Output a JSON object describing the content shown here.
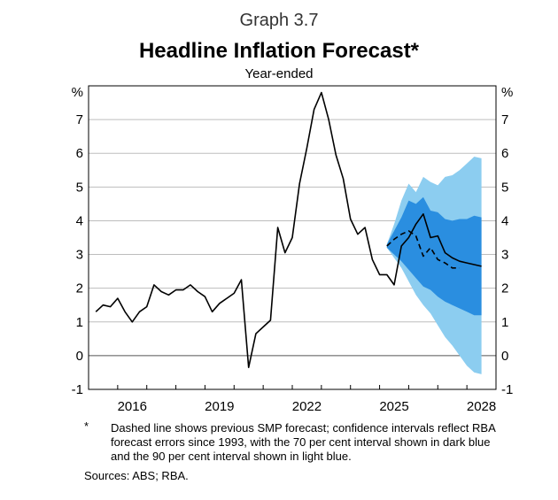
{
  "graph_label": "Graph 3.7",
  "footnote_mark": "*",
  "footnote": "Dashed line shows previous SMP forecast; confidence intervals reflect RBA forecast errors since 1993, with the 70 per cent interval shown in dark blue and the 90 per cent interval shown in light blue.",
  "sources": "Sources: ABS; RBA.",
  "colors": {
    "ci90": "#8ccdf0",
    "ci70": "#2a8ee0",
    "line": "#000000",
    "grid": "#bdbdbd"
  },
  "chart_data": {
    "type": "line",
    "title": "Headline Inflation Forecast*",
    "subtitle": "Year-ended",
    "ylabel_left": "%",
    "ylabel_right": "%",
    "ylim": [
      -1,
      8
    ],
    "yticks": [
      -1,
      0,
      1,
      2,
      3,
      4,
      5,
      6,
      7
    ],
    "xlim": [
      2015.0,
      2029.0
    ],
    "xticks": [
      2016,
      2019,
      2022,
      2025,
      2028
    ],
    "grid": true,
    "series": [
      {
        "style": "solid",
        "x": [
          2015.25,
          2015.5,
          2015.75,
          2016.0,
          2016.25,
          2016.5,
          2016.75,
          2017.0,
          2017.25,
          2017.5,
          2017.75,
          2018.0,
          2018.25,
          2018.5,
          2018.75,
          2019.0,
          2019.25,
          2019.5,
          2019.75,
          2020.0,
          2020.25,
          2020.5,
          2020.75,
          2021.0,
          2021.25,
          2021.5,
          2021.75,
          2022.0,
          2022.25,
          2022.5,
          2022.75,
          2023.0,
          2023.25,
          2023.5,
          2023.75,
          2024.0,
          2024.25,
          2024.5,
          2024.75,
          2025.0,
          2025.25,
          2025.5,
          2025.75,
          2026.0,
          2026.25,
          2026.5,
          2026.75,
          2027.0,
          2027.25,
          2027.5,
          2027.75,
          2028.0,
          2028.25,
          2028.5
        ],
        "y": [
          1.3,
          1.5,
          1.45,
          1.7,
          1.3,
          1.0,
          1.3,
          1.45,
          2.1,
          1.9,
          1.8,
          1.95,
          1.95,
          2.1,
          1.9,
          1.75,
          1.3,
          1.55,
          1.7,
          1.85,
          2.25,
          -0.35,
          0.65,
          0.85,
          1.05,
          3.8,
          3.05,
          3.5,
          5.1,
          6.15,
          7.3,
          7.8,
          7.0,
          5.95,
          5.25,
          4.05,
          3.6,
          3.8,
          2.85,
          2.4,
          2.4,
          2.1,
          3.25,
          3.5,
          3.9,
          4.2,
          3.5,
          3.55,
          3.05,
          2.9,
          2.8,
          2.75,
          2.7,
          2.65
        ]
      },
      {
        "style": "dashed",
        "x": [
          2025.25,
          2025.5,
          2025.75,
          2026.0,
          2026.25,
          2026.5,
          2026.75,
          2027.0,
          2027.25,
          2027.5,
          2027.75
        ],
        "y": [
          3.25,
          3.45,
          3.6,
          3.7,
          3.55,
          2.95,
          3.2,
          2.85,
          2.75,
          2.6,
          2.6
        ]
      }
    ],
    "confidence_intervals": [
      {
        "level": "90",
        "x": [
          2025.25,
          2025.5,
          2025.75,
          2026.0,
          2026.25,
          2026.5,
          2026.75,
          2027.0,
          2027.25,
          2027.5,
          2027.75,
          2028.0,
          2028.25,
          2028.5
        ],
        "upper": [
          3.3,
          3.9,
          4.6,
          5.1,
          4.85,
          5.3,
          5.15,
          5.05,
          5.3,
          5.35,
          5.5,
          5.7,
          5.9,
          5.85
        ],
        "lower": [
          3.2,
          2.9,
          2.6,
          2.2,
          1.8,
          1.5,
          1.25,
          0.9,
          0.55,
          0.3,
          0.0,
          -0.3,
          -0.5,
          -0.55
        ]
      },
      {
        "level": "70",
        "x": [
          2025.25,
          2025.5,
          2025.75,
          2026.0,
          2026.25,
          2026.5,
          2026.75,
          2027.0,
          2027.25,
          2027.5,
          2027.75,
          2028.0,
          2028.25,
          2028.5
        ],
        "upper": [
          3.3,
          3.7,
          4.1,
          4.6,
          4.5,
          4.7,
          4.3,
          4.25,
          4.05,
          4.0,
          4.05,
          4.05,
          4.15,
          4.1
        ],
        "lower": [
          3.2,
          3.0,
          2.8,
          2.55,
          2.3,
          2.05,
          1.95,
          1.75,
          1.6,
          1.5,
          1.4,
          1.3,
          1.2,
          1.2
        ]
      }
    ]
  }
}
